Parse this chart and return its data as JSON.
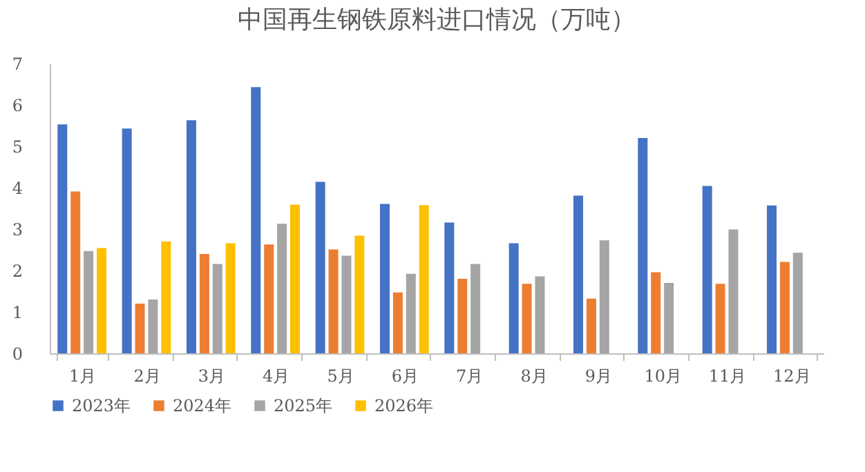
{
  "chart_data": {
    "type": "bar",
    "title": "中国再生钢铁原料进口情况（万吨）",
    "categories": [
      "1月",
      "2月",
      "3月",
      "4月",
      "5月",
      "6月",
      "7月",
      "8月",
      "9月",
      "10月",
      "11月",
      "12月"
    ],
    "series": [
      {
        "name": "2023年",
        "color": "#4472c4",
        "values": [
          5.53,
          5.43,
          5.63,
          6.43,
          4.14,
          3.61,
          3.16,
          2.66,
          3.81,
          5.2,
          4.04,
          3.57
        ]
      },
      {
        "name": "2024年",
        "color": "#ed7d31",
        "values": [
          3.91,
          1.2,
          2.4,
          2.63,
          2.51,
          1.47,
          1.8,
          1.68,
          1.32,
          1.96,
          1.68,
          2.21
        ]
      },
      {
        "name": "2025年",
        "color": "#a5a5a5",
        "values": [
          2.47,
          1.3,
          2.16,
          3.13,
          2.36,
          1.92,
          2.16,
          1.86,
          2.73,
          1.7,
          2.99,
          2.43
        ]
      },
      {
        "name": "2026年",
        "color": "#ffc000",
        "values": [
          2.54,
          2.7,
          2.66,
          3.59,
          2.84,
          3.58,
          null,
          null,
          null,
          null,
          null,
          null
        ]
      }
    ],
    "ylim": [
      0,
      7
    ],
    "yticks": [
      0,
      1,
      2,
      3,
      4,
      5,
      6,
      7
    ],
    "grid": false,
    "legend": "bottom"
  }
}
